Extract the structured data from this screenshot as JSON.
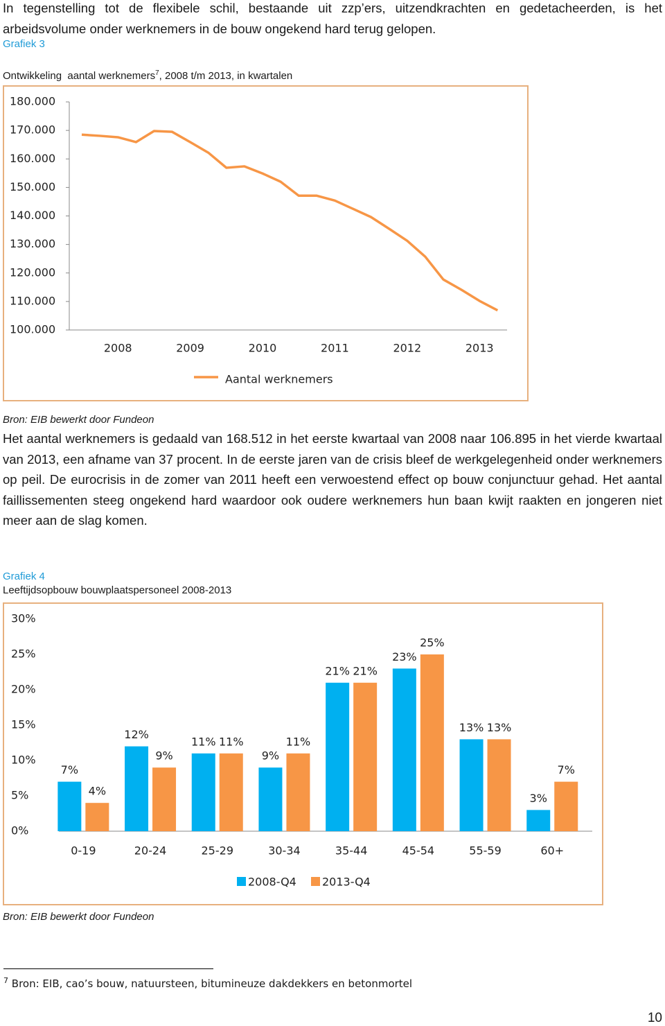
{
  "intro": "In tegenstelling tot de flexibele schil, bestaande uit zzp’ers, uitzendkrachten en gedetacheerden, is het arbeidsvolume onder werknemers in de bouw ongekend hard terug gelopen.",
  "body": "Het aantal werknemers is gedaald van 168.512 in het eerste kwartaal van 2008 naar 106.895 in het vierde kwartaal van 2013, een afname van 37 procent. In de eerste jaren van de crisis bleef de werkgelegenheid onder werknemers op peil. De eurocrisis in de zomer van 2011 heeft een verwoestend effect op bouw conjunctuur gehad. Het aantal faillissementen steeg ongekend hard waardoor ook oudere werknemers hun baan kwijt raakten en jongeren niet meer aan de slag komen.",
  "chart_data": [
    {
      "type": "line",
      "label": "Grafiek 3",
      "title": "Ontwikkeling  aantal werknemers",
      "footnote_ref": "7",
      "title_cont": ", 2008 t/m 2013, in kwartalen",
      "categories": [
        "2008",
        null,
        null,
        null,
        "2009",
        null,
        null,
        null,
        "2010",
        null,
        null,
        null,
        "2011",
        null,
        null,
        null,
        "2012",
        null,
        null,
        null,
        "2013",
        null,
        null,
        null
      ],
      "series": [
        {
          "name": "Aantal werknemers",
          "color": "#f79646",
          "values": [
            168512,
            168100,
            167600,
            165900,
            169800,
            169500,
            165900,
            162200,
            156900,
            157400,
            154900,
            152000,
            147100,
            147100,
            145400,
            142500,
            139600,
            135500,
            131300,
            125700,
            117700,
            114100,
            110200,
            106895
          ]
        }
      ],
      "ylim": [
        100000,
        180000
      ],
      "yticks": [
        {
          "value": 100000,
          "label": "100.000"
        },
        {
          "value": 110000,
          "label": "110.000"
        },
        {
          "value": 120000,
          "label": "120.000"
        },
        {
          "value": 130000,
          "label": "130.000"
        },
        {
          "value": 140000,
          "label": "140.000"
        },
        {
          "value": 150000,
          "label": "150.000"
        },
        {
          "value": 160000,
          "label": "160.000"
        },
        {
          "value": 170000,
          "label": "170.000"
        },
        {
          "value": 180000,
          "label": "180.000"
        }
      ],
      "grid": false,
      "legend": "bottom",
      "source": "Bron: EIB bewerkt door Fundeon"
    },
    {
      "type": "bar",
      "label": "Grafiek 4",
      "title": "Leeftijdsopbouw bouwplaatspersoneel 2008-2013",
      "categories": [
        "0-19",
        "20-24",
        "25-29",
        "30-34",
        "35-44",
        "45-54",
        "55-59",
        "60+"
      ],
      "series": [
        {
          "name": "2008-Q4",
          "color": "#00b0f0",
          "values": [
            7,
            12,
            11,
            9,
            21,
            23,
            13,
            3
          ],
          "value_labels": [
            "7%",
            "12%",
            "11%",
            "9%",
            "21%",
            "23%",
            "13%",
            "3%"
          ]
        },
        {
          "name": "2013-Q4",
          "color": "#f79646",
          "values": [
            4,
            9,
            11,
            11,
            21,
            25,
            13,
            7
          ],
          "value_labels": [
            "4%",
            "9%",
            "11%",
            "11%",
            "21%",
            "25%",
            "13%",
            "7%"
          ]
        }
      ],
      "ylim": [
        0,
        30
      ],
      "yticks": [
        {
          "value": 0,
          "label": "0%"
        },
        {
          "value": 5,
          "label": "5%"
        },
        {
          "value": 10,
          "label": "10%"
        },
        {
          "value": 15,
          "label": "15%"
        },
        {
          "value": 20,
          "label": "20%"
        },
        {
          "value": 25,
          "label": "25%"
        },
        {
          "value": 30,
          "label": "30%"
        }
      ],
      "grid": false,
      "legend": "bottom",
      "source": "Bron: EIB bewerkt door Fundeon"
    }
  ],
  "footnote": {
    "number": "7",
    "text": "Bron: EIB, cao’s bouw, natuursteen, bitumineuze dakdekkers en betonmortel"
  },
  "page_number": "10"
}
